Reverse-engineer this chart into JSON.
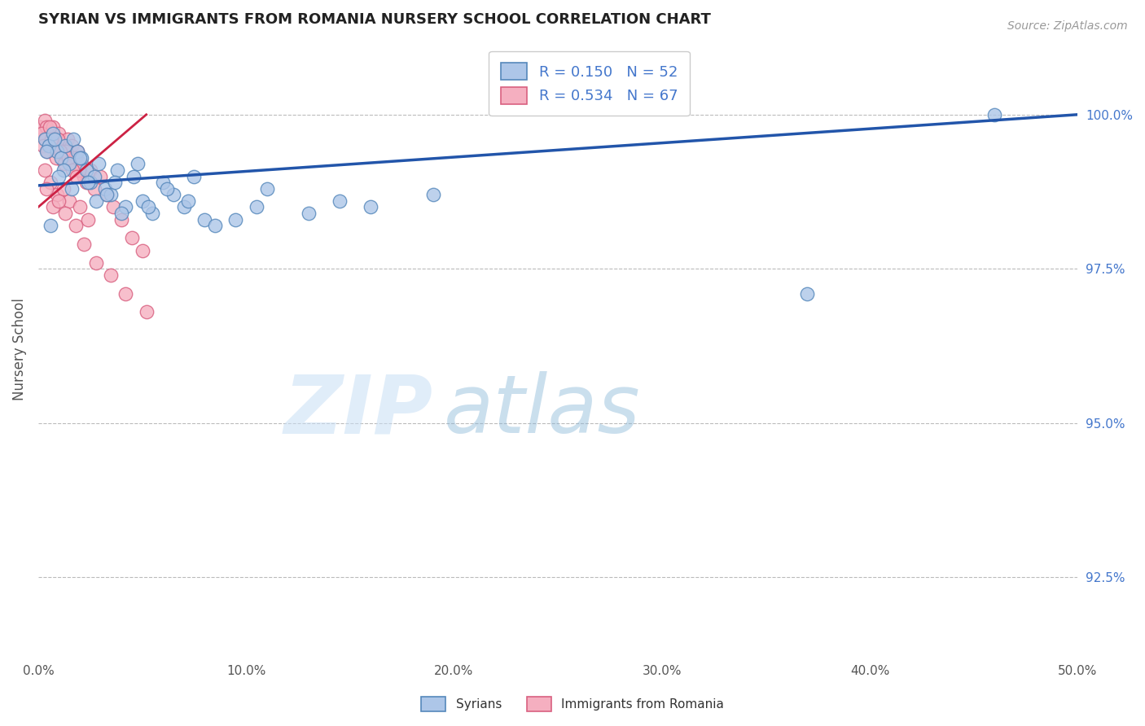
{
  "title": "SYRIAN VS IMMIGRANTS FROM ROMANIA NURSERY SCHOOL CORRELATION CHART",
  "source": "Source: ZipAtlas.com",
  "ylabel": "Nursery School",
  "xlim": [
    0.0,
    50.0
  ],
  "ylim": [
    91.2,
    101.2
  ],
  "yticks": [
    92.5,
    95.0,
    97.5,
    100.0
  ],
  "ytick_labels": [
    "92.5%",
    "95.0%",
    "97.5%",
    "100.0%"
  ],
  "xticks": [
    0.0,
    10.0,
    20.0,
    30.0,
    40.0,
    50.0
  ],
  "xtick_labels": [
    "0.0%",
    "10.0%",
    "20.0%",
    "30.0%",
    "40.0%",
    "50.0%"
  ],
  "blue_R": 0.15,
  "blue_N": 52,
  "pink_R": 0.534,
  "pink_N": 67,
  "blue_color": "#adc6e8",
  "pink_color": "#f5afc0",
  "blue_edge": "#5588bb",
  "pink_edge": "#d96080",
  "trend_blue": "#2255aa",
  "trend_pink": "#cc2244",
  "background": "#ffffff",
  "grid_color": "#bbbbbb",
  "title_color": "#222222",
  "axis_label_color": "#555555",
  "tick_color": "#555555",
  "right_label_color": "#4477cc",
  "watermark_zip": "ZIP",
  "watermark_atlas": "atlas",
  "blue_scatter_x": [
    0.3,
    0.5,
    0.7,
    0.9,
    1.1,
    1.3,
    1.5,
    1.7,
    1.9,
    2.1,
    2.3,
    2.5,
    2.7,
    2.9,
    3.2,
    3.5,
    3.8,
    4.2,
    4.6,
    5.0,
    5.5,
    6.0,
    6.5,
    7.0,
    7.5,
    8.0,
    0.4,
    0.8,
    1.2,
    1.6,
    2.0,
    2.4,
    2.8,
    3.3,
    3.7,
    4.0,
    4.8,
    5.3,
    6.2,
    7.2,
    8.5,
    9.5,
    10.5,
    11.0,
    13.0,
    14.5,
    16.0,
    19.0,
    0.6,
    1.0,
    37.0,
    46.0
  ],
  "blue_scatter_y": [
    99.6,
    99.5,
    99.7,
    99.4,
    99.3,
    99.5,
    99.2,
    99.6,
    99.4,
    99.3,
    99.1,
    98.9,
    99.0,
    99.2,
    98.8,
    98.7,
    99.1,
    98.5,
    99.0,
    98.6,
    98.4,
    98.9,
    98.7,
    98.5,
    99.0,
    98.3,
    99.4,
    99.6,
    99.1,
    98.8,
    99.3,
    98.9,
    98.6,
    98.7,
    98.9,
    98.4,
    99.2,
    98.5,
    98.8,
    98.6,
    98.2,
    98.3,
    98.5,
    98.8,
    98.4,
    98.6,
    98.5,
    98.7,
    98.2,
    99.0,
    97.1,
    100.0
  ],
  "pink_scatter_x": [
    0.1,
    0.2,
    0.3,
    0.4,
    0.5,
    0.6,
    0.7,
    0.8,
    0.9,
    1.0,
    1.1,
    1.2,
    1.3,
    1.4,
    1.5,
    1.6,
    1.7,
    1.8,
    1.9,
    2.0,
    2.1,
    2.2,
    2.3,
    2.5,
    2.7,
    3.0,
    3.3,
    3.6,
    4.0,
    4.5,
    5.0,
    0.15,
    0.35,
    0.55,
    0.75,
    0.95,
    1.15,
    1.35,
    1.55,
    1.75,
    1.95,
    0.25,
    0.45,
    0.65,
    0.85,
    1.05,
    1.25,
    1.45,
    1.65,
    1.85,
    0.3,
    0.6,
    0.9,
    1.2,
    1.5,
    2.0,
    2.4,
    0.4,
    0.7,
    1.0,
    1.3,
    1.8,
    2.2,
    2.8,
    3.5,
    4.2,
    5.2
  ],
  "pink_scatter_y": [
    99.8,
    99.7,
    99.9,
    99.8,
    99.6,
    99.7,
    99.8,
    99.5,
    99.6,
    99.7,
    99.4,
    99.5,
    99.3,
    99.6,
    99.4,
    99.5,
    99.2,
    99.3,
    99.4,
    99.1,
    99.2,
    99.0,
    98.9,
    99.1,
    98.8,
    99.0,
    98.7,
    98.5,
    98.3,
    98.0,
    97.8,
    99.7,
    99.6,
    99.8,
    99.5,
    99.6,
    99.3,
    99.4,
    99.2,
    99.3,
    99.1,
    99.5,
    99.4,
    99.6,
    99.3,
    99.4,
    99.2,
    99.3,
    99.1,
    99.0,
    99.1,
    98.9,
    98.7,
    98.8,
    98.6,
    98.5,
    98.3,
    98.8,
    98.5,
    98.6,
    98.4,
    98.2,
    97.9,
    97.6,
    97.4,
    97.1,
    96.8
  ],
  "blue_trendline_x": [
    0.0,
    50.0
  ],
  "blue_trendline_y": [
    98.85,
    100.0
  ],
  "pink_trendline_x": [
    0.0,
    5.2
  ],
  "pink_trendline_y": [
    98.5,
    100.0
  ]
}
